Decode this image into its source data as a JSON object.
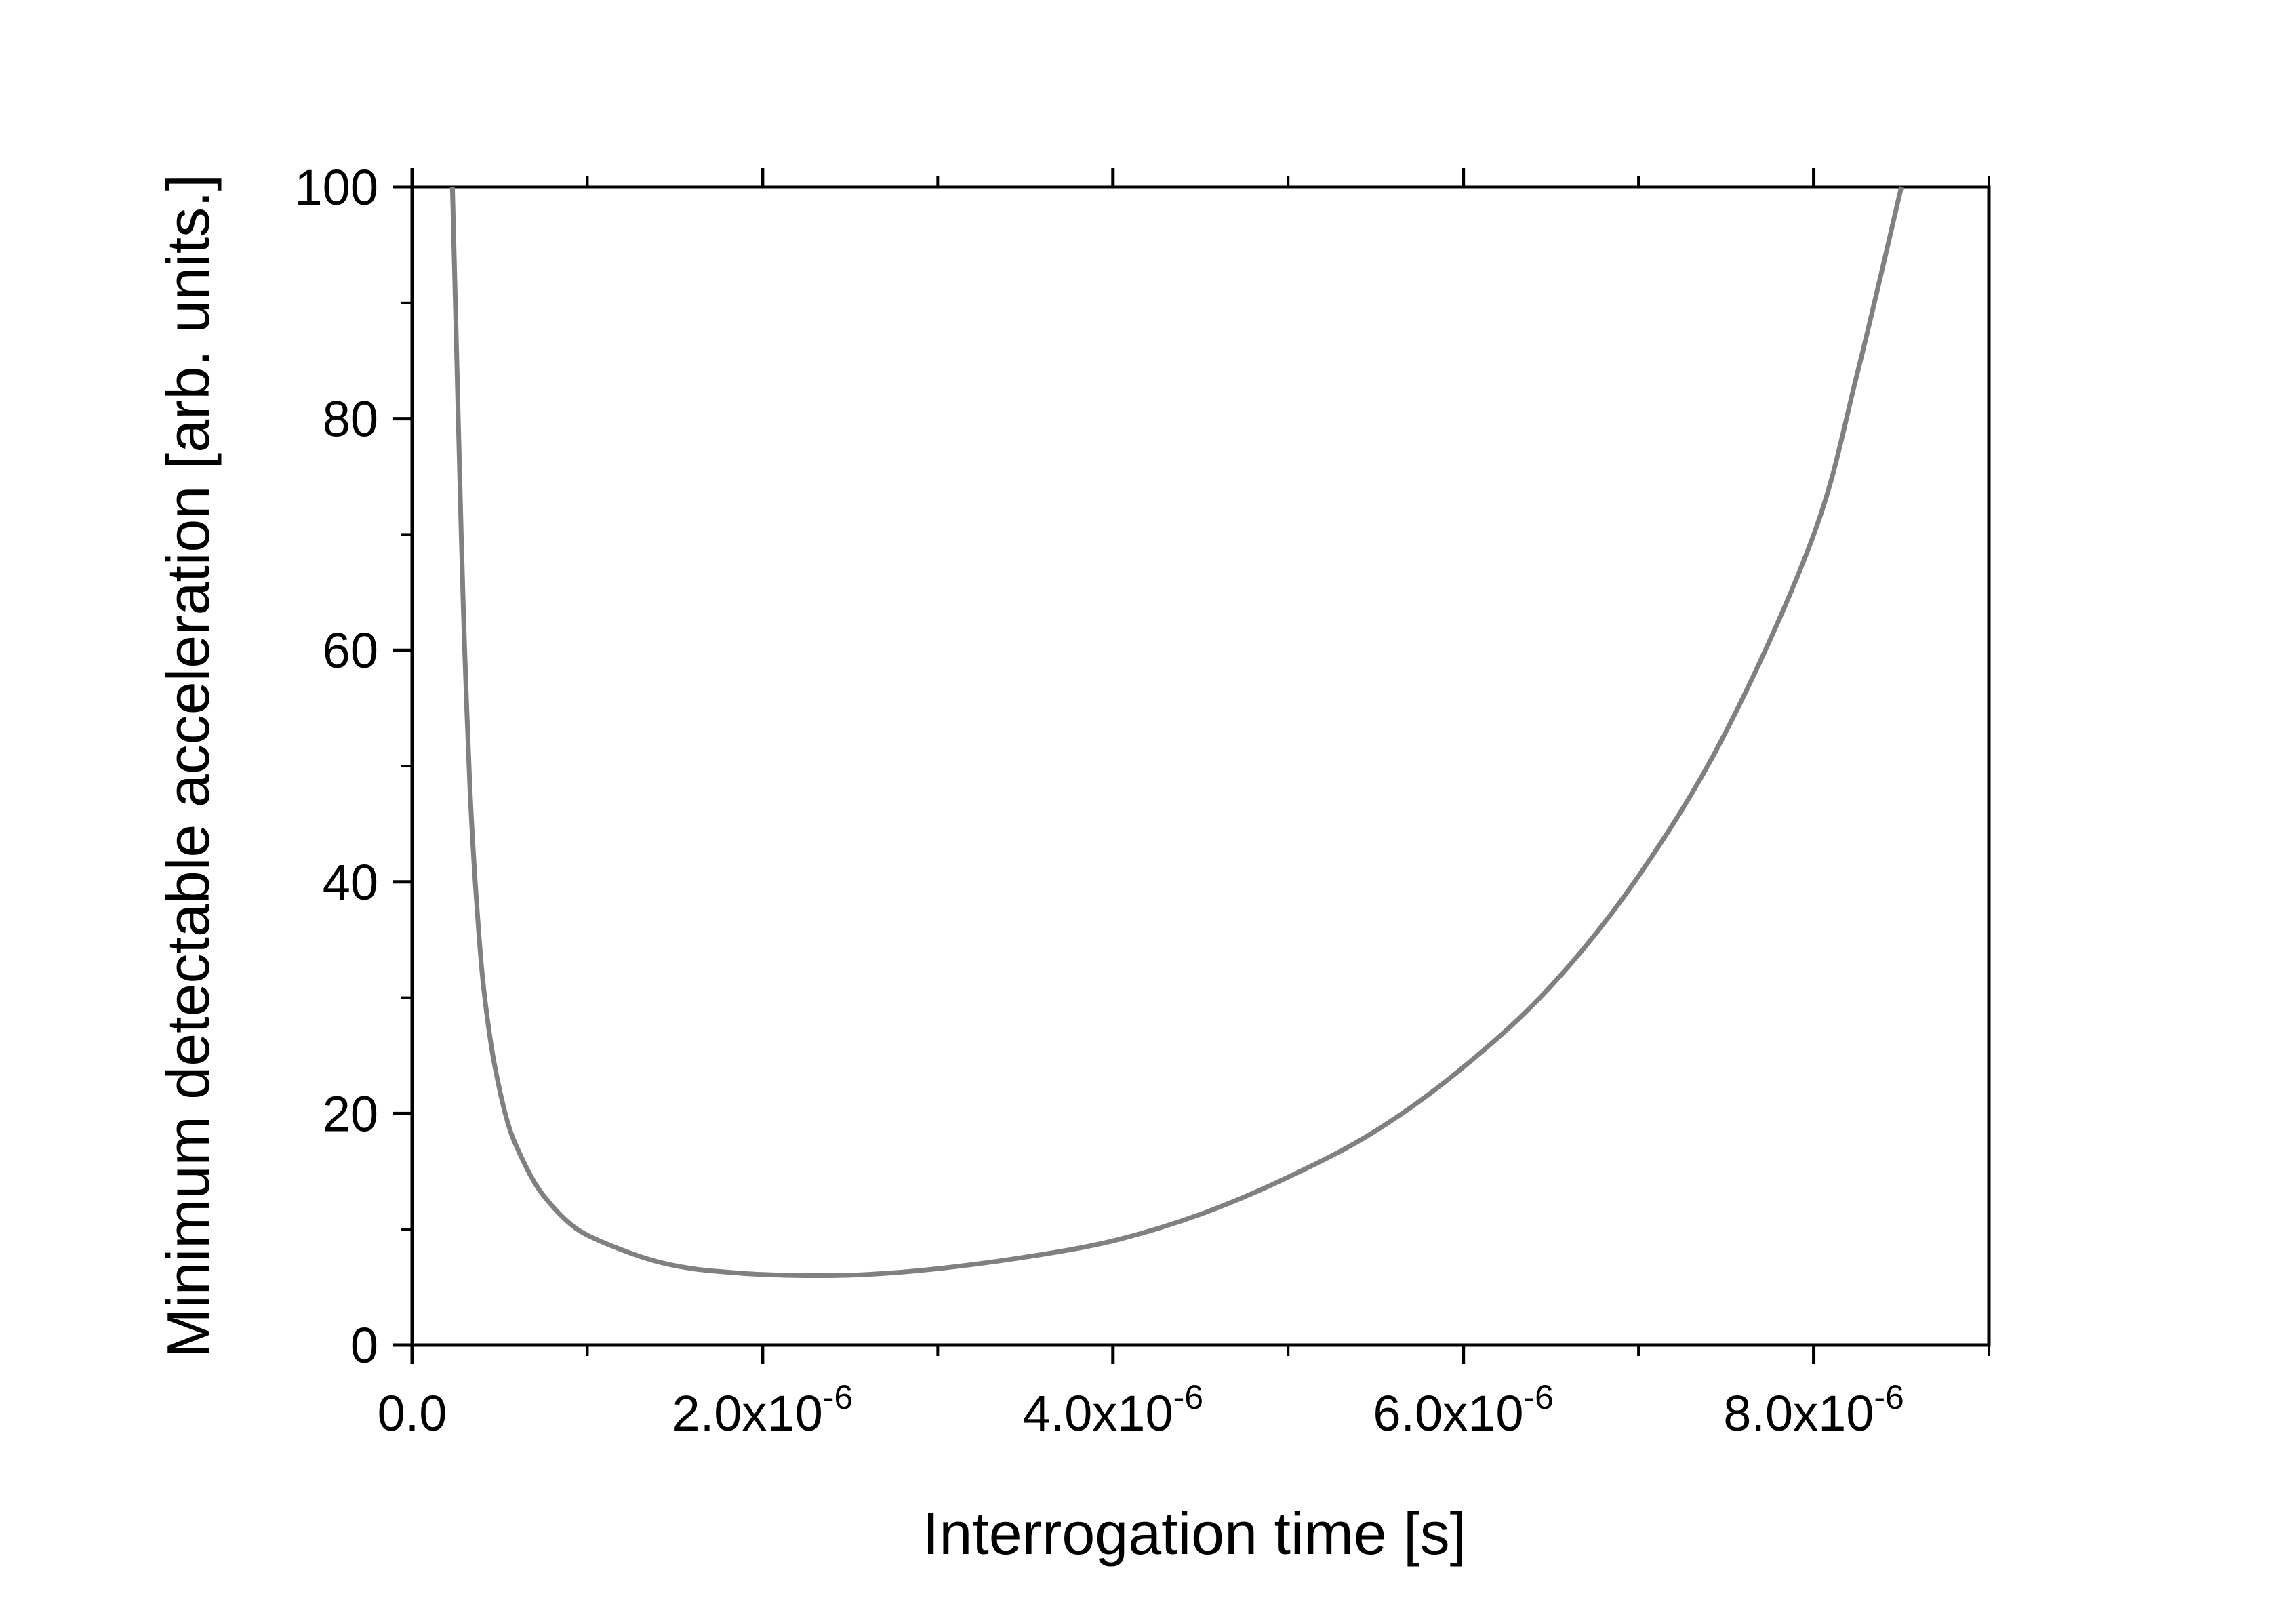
{
  "chart_data": {
    "type": "line",
    "title": "",
    "xlabel": "Interrogation time [s]",
    "ylabel": "Minimum detectable acceleration [arb. units.]",
    "xlim": [
      0,
      9e-06
    ],
    "ylim": [
      0,
      100
    ],
    "x_ticks": [
      {
        "value": 0,
        "mantissa": "0.0",
        "exponent": ""
      },
      {
        "value": 2e-06,
        "mantissa": "2.0x10",
        "exponent": "-6"
      },
      {
        "value": 4e-06,
        "mantissa": "4.0x10",
        "exponent": "-6"
      },
      {
        "value": 6e-06,
        "mantissa": "6.0x10",
        "exponent": "-6"
      },
      {
        "value": 8e-06,
        "mantissa": "8.0x10",
        "exponent": "-6"
      }
    ],
    "y_ticks": [
      {
        "value": 0,
        "label": "0"
      },
      {
        "value": 20,
        "label": "20"
      },
      {
        "value": 40,
        "label": "40"
      },
      {
        "value": 60,
        "label": "60"
      },
      {
        "value": 80,
        "label": "80"
      },
      {
        "value": 100,
        "label": "100"
      }
    ],
    "grid": false,
    "legend": "none",
    "series": [
      {
        "color": "#808080",
        "x": [
          2.3e-07,
          2.5e-07,
          2.8e-07,
          3e-07,
          3.3e-07,
          3.6e-07,
          4e-07,
          4.5e-07,
          5e-07,
          5.5e-07,
          6e-07,
          7e-07,
          8e-07,
          9e-07,
          1e-06,
          1.2e-06,
          1.4e-06,
          1.6e-06,
          1.8e-06,
          2e-06,
          2.3e-06,
          2.6e-06,
          3e-06,
          3.5e-06,
          4e-06,
          4.5e-06,
          5e-06,
          5.5e-06,
          6e-06,
          6.5e-06,
          7e-06,
          7.5e-06,
          8e-06,
          8.25e-06,
          8.5e-06
        ],
        "y": [
          100,
          88,
          70,
          60,
          48,
          40,
          32,
          26,
          22,
          19,
          17,
          14,
          12,
          10.5,
          9.5,
          8.2,
          7.2,
          6.6,
          6.3,
          6.1,
          6.0,
          6.1,
          6.6,
          7.6,
          9.0,
          11.3,
          14.5,
          18.5,
          24.0,
          31.0,
          40.5,
          53.0,
          70.0,
          84.0,
          100
        ]
      }
    ]
  }
}
